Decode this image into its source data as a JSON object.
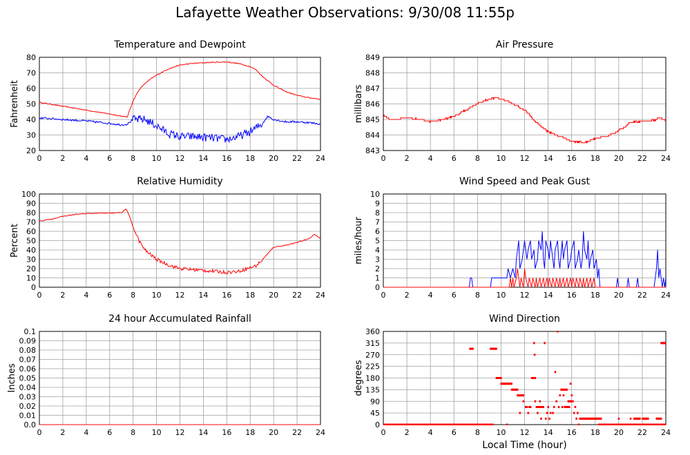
{
  "page": {
    "title": "Lafayette Weather Observations: 9/30/08 11:55p",
    "xlabel": "Local Time (hour)"
  },
  "colors": {
    "red": "#ff0000",
    "blue": "#0000ff",
    "grid": "#a0a0a0",
    "axis": "#000000"
  },
  "chart_data": [
    {
      "id": "temp",
      "type": "line",
      "title": "Temperature and Dewpoint",
      "ylabel": "Fahrenheit",
      "xlim": [
        0,
        24
      ],
      "ylim": [
        20,
        80
      ],
      "xticks": [
        0,
        2,
        4,
        6,
        8,
        10,
        12,
        14,
        16,
        18,
        20,
        22,
        24
      ],
      "yticks": [
        20,
        30,
        40,
        50,
        60,
        70,
        80
      ],
      "ytick_labels": [
        "20",
        "30",
        "40",
        "50",
        "60",
        "70",
        "80"
      ],
      "series": [
        {
          "color": "#ff0000",
          "noise": 0.3,
          "x": [
            0,
            2,
            4,
            6,
            7.5,
            8,
            8.5,
            9,
            9.5,
            10,
            11,
            12,
            13,
            14,
            15,
            16,
            17,
            18,
            18.5,
            19,
            20,
            21,
            22,
            23,
            24
          ],
          "y": [
            51,
            48.5,
            46,
            43.5,
            41.5,
            52,
            59,
            63,
            66,
            68.5,
            72.5,
            75,
            76,
            76.5,
            76.8,
            77,
            76,
            74,
            72,
            68,
            62,
            58,
            55.5,
            54,
            53
          ]
        },
        {
          "color": "#0000ff",
          "noise": 2.6,
          "noise_range": [
            8,
            19
          ],
          "x": [
            0,
            2,
            4,
            6,
            7,
            7.5,
            8,
            9,
            10,
            11,
            12,
            13,
            14,
            15,
            16,
            17,
            18,
            19,
            19.5,
            20,
            21,
            22,
            23,
            24
          ],
          "y": [
            41,
            40,
            39,
            37.5,
            36.5,
            37,
            40,
            40,
            36,
            31,
            29,
            29,
            28.5,
            28,
            27,
            29,
            32,
            37,
            42,
            40,
            38.5,
            38.5,
            38,
            37
          ]
        }
      ]
    },
    {
      "id": "pressure",
      "type": "line",
      "title": "Air Pressure",
      "ylabel": "millibars",
      "xlim": [
        0,
        24
      ],
      "ylim": [
        843,
        849
      ],
      "xticks": [
        0,
        2,
        4,
        6,
        8,
        10,
        12,
        14,
        16,
        18,
        20,
        22,
        24
      ],
      "yticks": [
        843,
        844,
        845,
        846,
        847,
        848,
        849
      ],
      "ytick_labels": [
        "843",
        "844",
        "845",
        "846",
        "847",
        "848",
        "849"
      ],
      "series": [
        {
          "color": "#ff0000",
          "noise": 0.04,
          "step": 0.1,
          "x": [
            0,
            0.5,
            1,
            2,
            3,
            4,
            5,
            6,
            7,
            8,
            9,
            9.5,
            10,
            11,
            12,
            13,
            14,
            15,
            16,
            17,
            18,
            19,
            20,
            21,
            22,
            23,
            23.5,
            24
          ],
          "y": [
            845.3,
            845,
            845,
            845.1,
            845,
            844.85,
            845,
            845.2,
            845.6,
            846.05,
            846.3,
            846.4,
            846.35,
            846,
            845.6,
            844.8,
            844.2,
            843.9,
            843.6,
            843.5,
            843.8,
            843.9,
            844.3,
            844.8,
            844.9,
            844.95,
            845.1,
            844.95
          ]
        }
      ]
    },
    {
      "id": "humidity",
      "type": "line",
      "title": "Relative Humidity",
      "ylabel": "Percent",
      "xlim": [
        0,
        24
      ],
      "ylim": [
        0,
        100
      ],
      "xticks": [
        0,
        2,
        4,
        6,
        8,
        10,
        12,
        14,
        16,
        18,
        20,
        22,
        24
      ],
      "yticks": [
        0,
        10,
        20,
        30,
        40,
        50,
        60,
        70,
        80,
        90,
        100
      ],
      "ytick_labels": [
        "0",
        "10",
        "20",
        "30",
        "40",
        "50",
        "60",
        "70",
        "80",
        "90",
        "100"
      ],
      "series": [
        {
          "color": "#ff0000",
          "noise": 1.8,
          "noise_range": [
            8,
            19
          ],
          "x": [
            0,
            1,
            2,
            3,
            4,
            5,
            6,
            7,
            7.4,
            7.6,
            8,
            8.5,
            9,
            9.5,
            10,
            11,
            12,
            13,
            14,
            15,
            16,
            17,
            18,
            18.5,
            19,
            19.5,
            20,
            21,
            22,
            23,
            23.5,
            24
          ],
          "y": [
            71,
            73,
            76,
            78,
            79,
            79.5,
            79.5,
            80,
            84,
            79,
            65,
            50,
            40,
            35,
            30,
            24,
            20,
            19,
            18,
            17,
            16,
            17,
            21,
            23,
            29,
            36,
            43,
            45,
            48,
            52,
            57,
            52
          ]
        }
      ]
    },
    {
      "id": "wind",
      "type": "line",
      "title": "Wind Speed and Peak Gust",
      "ylabel": "miles/hour",
      "xlim": [
        0,
        24
      ],
      "ylim": [
        0,
        10
      ],
      "xticks": [
        0,
        2,
        4,
        6,
        8,
        10,
        12,
        14,
        16,
        18,
        20,
        22,
        24
      ],
      "yticks": [
        0,
        1,
        2,
        3,
        4,
        5,
        6,
        7,
        8,
        9,
        10
      ],
      "ytick_labels": [
        "0",
        "1",
        "2",
        "3",
        "4",
        "5",
        "6",
        "7",
        "8",
        "9",
        "10"
      ],
      "series": [
        {
          "color": "#0000ff",
          "x": [
            0,
            7.3,
            7.4,
            7.5,
            7.6,
            9.1,
            9.2,
            10.5,
            10.6,
            10.8,
            11,
            11.2,
            11.3,
            11.5,
            11.6,
            11.8,
            11.9,
            12.0,
            12.2,
            12.3,
            12.5,
            12.6,
            12.8,
            12.9,
            13.1,
            13.2,
            13.4,
            13.5,
            13.6,
            13.7,
            13.8,
            14.0,
            14.1,
            14.2,
            14.3,
            14.5,
            14.6,
            14.8,
            14.9,
            15.0,
            15.2,
            15.3,
            15.4,
            15.6,
            15.7,
            15.9,
            16.0,
            16.2,
            16.3,
            16.5,
            16.6,
            16.8,
            16.9,
            17.0,
            17.1,
            17.3,
            17.4,
            17.5,
            17.6,
            17.8,
            17.9,
            18.1,
            18.2,
            18.3,
            18.4,
            19.8,
            19.9,
            20.0,
            20.7,
            20.8,
            20.9,
            21.5,
            21.6,
            21.7,
            23.0,
            23.1,
            23.2,
            23.3,
            23.4,
            23.5,
            23.6,
            23.7,
            23.8,
            23.9,
            24
          ],
          "y": [
            0,
            0,
            1,
            1,
            0,
            0,
            1,
            1,
            2,
            1,
            2,
            1,
            3,
            5,
            2,
            3,
            4,
            5,
            3,
            4,
            5,
            3,
            4,
            2,
            3,
            5,
            4,
            6,
            3,
            2,
            5,
            4,
            3,
            5,
            4,
            2,
            4,
            5,
            3,
            2,
            5,
            3,
            4,
            5,
            2,
            3,
            4,
            5,
            2,
            3,
            4,
            2,
            3,
            6,
            4,
            3,
            5,
            2,
            3,
            4,
            2,
            3,
            1,
            2,
            0,
            0,
            1,
            0,
            0,
            1,
            0,
            0,
            1,
            0,
            0,
            1,
            2,
            4,
            1,
            2,
            1,
            0,
            1,
            0,
            1
          ]
        },
        {
          "color": "#ff0000",
          "x": [
            0,
            10.7,
            10.8,
            10.9,
            11.0,
            11.1,
            11.3,
            11.4,
            11.6,
            11.7,
            11.9,
            12.0,
            12.1,
            12.3,
            12.4,
            12.6,
            12.7,
            12.9,
            13.0,
            13.1,
            13.3,
            13.4,
            13.6,
            13.7,
            13.9,
            14.0,
            14.1,
            14.3,
            14.4,
            14.6,
            14.7,
            14.9,
            15.0,
            15.1,
            15.3,
            15.4,
            15.6,
            15.7,
            15.9,
            16.0,
            16.1,
            16.3,
            16.4,
            16.6,
            16.7,
            16.9,
            17.0,
            17.1,
            17.3,
            17.4,
            17.6,
            17.7,
            17.9,
            18.0,
            24
          ],
          "y": [
            0,
            0,
            1,
            0,
            1,
            0,
            1,
            2,
            0,
            1,
            0,
            2,
            1,
            0,
            1,
            0,
            1,
            0,
            1,
            0,
            1,
            0,
            1,
            0,
            1,
            0,
            1,
            0,
            1,
            0,
            1,
            0,
            1,
            0,
            1,
            0,
            1,
            0,
            1,
            0,
            1,
            0,
            1,
            0,
            1,
            0,
            1,
            0,
            1,
            0,
            1,
            0,
            1,
            0,
            0
          ]
        }
      ]
    },
    {
      "id": "rain",
      "type": "line",
      "title": "24 hour Accumulated Rainfall",
      "ylabel": "Inches",
      "xlim": [
        0,
        24
      ],
      "ylim": [
        0,
        0.1
      ],
      "xticks": [
        0,
        2,
        4,
        6,
        8,
        10,
        12,
        14,
        16,
        18,
        20,
        22,
        24
      ],
      "yticks": [
        0,
        0.01,
        0.02,
        0.03,
        0.04,
        0.05,
        0.06,
        0.07,
        0.08,
        0.09,
        0.1
      ],
      "ytick_labels": [
        "0.0",
        "0.01",
        "0.02",
        "0.03",
        "0.04",
        "0.05",
        "0.06",
        "0.07",
        "0.08",
        "0.09",
        "0.1"
      ],
      "series": [
        {
          "color": "#ff0000",
          "x": [
            0,
            24
          ],
          "y": [
            0,
            0
          ]
        }
      ]
    },
    {
      "id": "direction",
      "type": "scatter",
      "title": "Wind Direction",
      "ylabel": "degrees",
      "xlabel": "Local Time (hour)",
      "xlim": [
        0,
        24
      ],
      "ylim": [
        0,
        360
      ],
      "xticks": [
        0,
        2,
        4,
        6,
        8,
        10,
        12,
        14,
        16,
        18,
        20,
        22,
        24
      ],
      "yticks": [
        0,
        45,
        90,
        135,
        180,
        225,
        270,
        315,
        360
      ],
      "ytick_labels": [
        "0",
        "45",
        "90",
        "135",
        "180",
        "225",
        "270",
        "315",
        "360"
      ],
      "series": [
        {
          "color": "#ff0000",
          "runs": [
            {
              "x": [
                0,
                9.3
              ],
              "y": 0
            },
            {
              "x": [
                7.35,
                7.6
              ],
              "y": 293
            },
            {
              "x": [
                9.1,
                9.6
              ],
              "y": 293
            },
            {
              "x": [
                9.6,
                10.0
              ],
              "y": 180
            },
            {
              "x": [
                10.0,
                10.9
              ],
              "y": 158
            },
            {
              "x": [
                10.9,
                11.4
              ],
              "y": 135
            },
            {
              "x": [
                11.4,
                11.9
              ],
              "y": 113
            },
            {
              "x": [
                12.6,
                12.9
              ],
              "y": 180
            },
            {
              "x": [
                13.0,
                13.6
              ],
              "y": 68
            },
            {
              "x": [
                15.1,
                15.6
              ],
              "y": 135
            },
            {
              "x": [
                15.4,
                15.8
              ],
              "y": 68
            },
            {
              "x": [
                15.7,
                16.0
              ],
              "y": 90
            },
            {
              "x": [
                16.8,
                18.5
              ],
              "y": 23
            },
            {
              "x": [
                18.3,
                24
              ],
              "y": 0
            },
            {
              "x": [
                21.3,
                21.8
              ],
              "y": 23
            },
            {
              "x": [
                22.0,
                22.5
              ],
              "y": 23
            },
            {
              "x": [
                23.2,
                23.6
              ],
              "y": 23
            },
            {
              "x": [
                23.6,
                24
              ],
              "y": 315
            }
          ],
          "x": [
            11.9,
            11.6,
            12.1,
            12.2,
            12.3,
            12.4,
            12.5,
            12.8,
            12.85,
            12.9,
            13.1,
            13.3,
            13.4,
            13.5,
            13.7,
            13.8,
            13.9,
            14.0,
            14.1,
            14.2,
            14.4,
            14.5,
            14.6,
            14.7,
            14.8,
            14.9,
            15.0,
            15.2,
            15.3,
            15.9,
            16.0,
            16.1,
            16.2,
            16.3,
            16.4,
            16.5,
            16.6,
            16.7,
            10.5,
            19.0,
            20.0,
            20.5,
            21.0
          ],
          "y": [
            90,
            45,
            68,
            68,
            45,
            68,
            68,
            315,
            270,
            90,
            45,
            90,
            23,
            68,
            315,
            23,
            45,
            68,
            23,
            45,
            45,
            68,
            203,
            90,
            360,
            68,
            113,
            68,
            113,
            158,
            113,
            90,
            45,
            68,
            23,
            45,
            0,
            23,
            0,
            0,
            23,
            0,
            23
          ]
        }
      ]
    }
  ]
}
